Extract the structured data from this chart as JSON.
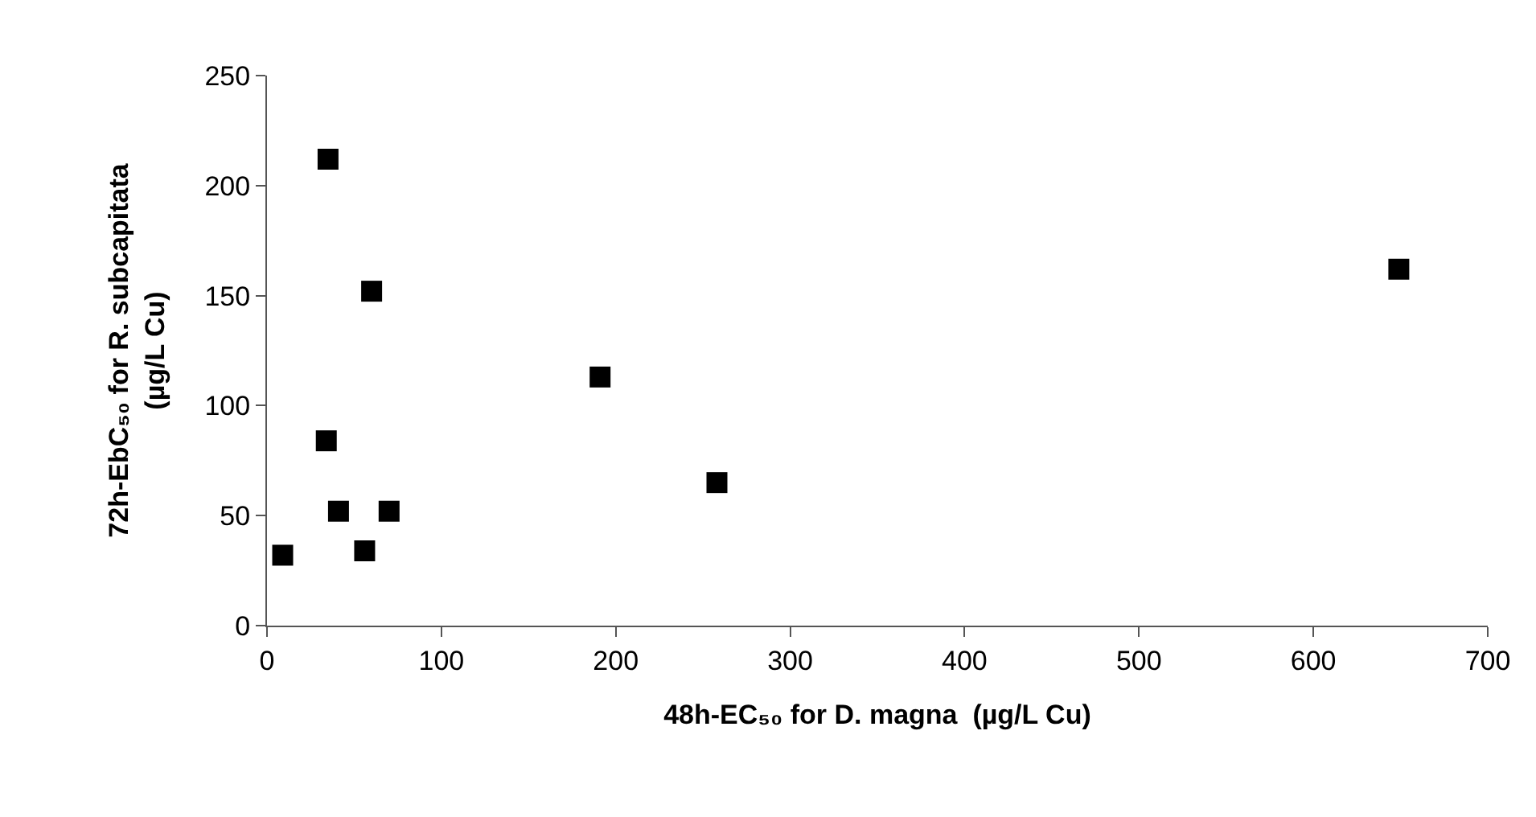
{
  "chart_data": {
    "type": "scatter",
    "xlabel": "48h-EC₅₀ for D. magna  (µg/L Cu)",
    "ylabel": "72h-EbC₅₀ for R. subcapitata\n(µg/L Cu)",
    "x": [
      9,
      35,
      60,
      34,
      41,
      70,
      56,
      191,
      258,
      649
    ],
    "values": [
      32,
      212,
      152,
      84,
      52,
      52,
      34,
      113,
      65,
      162
    ],
    "color": "#000000",
    "marker": "square",
    "grid": false,
    "xlim": [
      0,
      700
    ],
    "xticks": [
      0,
      100,
      200,
      300,
      400,
      500,
      600,
      700
    ],
    "ylim": [
      0,
      250
    ],
    "yticks": [
      0,
      50,
      100,
      150,
      200,
      250
    ]
  }
}
